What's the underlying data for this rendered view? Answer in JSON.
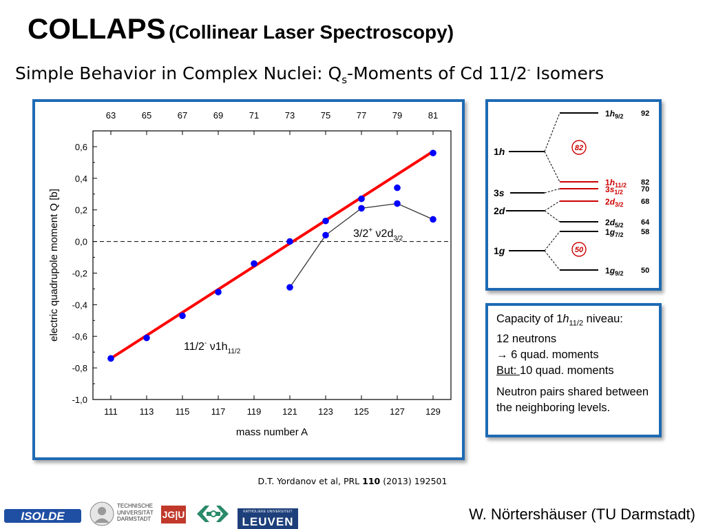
{
  "slide": {
    "title": "COLLAPS",
    "title_paren": "(Collinear Laser Spectroscopy)",
    "subtitle_pre": "Simple Behavior in Complex Nuclei: Q",
    "subtitle_sub": "s",
    "subtitle_mid": "-Moments of Cd 11/2",
    "subtitle_sup": "-",
    "subtitle_post": " Isomers",
    "citation_pre": "D.T. Yordanov et al, PRL ",
    "citation_vol": "110",
    "citation_post": " (2013) 192501",
    "author": "W. Nörtershäuser (TU Darmstadt)"
  },
  "chart_data": {
    "type": "scatter",
    "xlabel": "mass number A",
    "ylabel": "electric quadrupole moment Q [b]",
    "x_ticks": [
      111,
      113,
      115,
      117,
      119,
      121,
      123,
      125,
      127,
      129
    ],
    "top_ticks": [
      63,
      65,
      67,
      69,
      71,
      73,
      75,
      77,
      79,
      81
    ],
    "xlim": [
      110,
      130
    ],
    "ylim": [
      -1.0,
      0.7
    ],
    "y_ticks": [
      -1.0,
      -0.8,
      -0.6,
      -0.4,
      -0.2,
      0.0,
      0.2,
      0.4,
      0.6
    ],
    "y_tick_labels": [
      "-1,0",
      "-0,8",
      "-0,6",
      "-0,4",
      "-0,2",
      "0,0",
      "0,2",
      "0,4",
      "0,6"
    ],
    "zero_line": 0.0,
    "series": [
      {
        "name": "11/2⁻ ν1h11/2",
        "color": "#0000ff",
        "x": [
          111,
          113,
          115,
          117,
          119,
          121,
          123,
          125,
          127,
          129
        ],
        "y": [
          -0.74,
          -0.61,
          -0.47,
          -0.32,
          -0.14,
          0.0,
          0.13,
          0.27,
          0.34,
          0.56
        ]
      },
      {
        "name": "3/2⁺ ν2d3/2",
        "color": "#0000ff",
        "x": [
          121,
          123,
          125,
          127,
          129
        ],
        "y": [
          -0.29,
          0.04,
          0.21,
          0.24,
          0.14
        ]
      }
    ],
    "fit_line": {
      "color": "#ff0000",
      "x": [
        111,
        129
      ],
      "y": [
        -0.74,
        0.57
      ]
    },
    "annotations": {
      "h11": "11/2",
      "h11_sup": "-",
      "h11_nu": " ν1h",
      "h11_sub": "11/2",
      "d32": "3/2",
      "d32_sup": "+",
      "d32_nu": " ν2d",
      "d32_sub": "3/2"
    }
  },
  "levels": {
    "left_labels": [
      {
        "n": "1",
        "l": "h"
      },
      {
        "n": "3",
        "l": "s"
      },
      {
        "n": "2",
        "l": "d"
      },
      {
        "n": "1",
        "l": "g"
      }
    ],
    "right_labels": [
      {
        "n": "1",
        "l": "h",
        "j": "9/2",
        "num": "92",
        "color": "#000000"
      },
      {
        "n": "1",
        "l": "h",
        "j": "11/2",
        "num": "82",
        "color": "#cc0000"
      },
      {
        "n": "3",
        "l": "s",
        "j": "1/2",
        "num": "70",
        "color": "#cc0000"
      },
      {
        "n": "2",
        "l": "d",
        "j": "3/2",
        "num": "68",
        "color": "#cc0000"
      },
      {
        "n": "2",
        "l": "d",
        "j": "5/2",
        "num": "64",
        "color": "#000000"
      },
      {
        "n": "1",
        "l": "g",
        "j": "7/2",
        "num": "58",
        "color": "#000000"
      },
      {
        "n": "1",
        "l": "g",
        "j": "9/2",
        "num": "50",
        "color": "#000000"
      }
    ],
    "magic": [
      "82",
      "50"
    ],
    "magic_color": "#cc0000"
  },
  "info": {
    "line1_pre": "Capacity of 1",
    "line1_h": "h",
    "line1_sub": "11/2",
    "line1_post": " niveau:",
    "line2": "12 neutrons",
    "line3": "→ 6 quad. moments",
    "line4_u": "But: ",
    "line4_post": "10 quad. moments",
    "para2": "Neutron pairs shared between the neighboring levels."
  },
  "logos": {
    "isolde": "ISOLDE",
    "tud": [
      "TECHNISCHE",
      "UNIVERSITÄT",
      "DARMSTADT"
    ],
    "jgu": "JG|U",
    "leuven_small": "KATHOLIEKE UNIVERSITEIT",
    "leuven": "LEUVEN"
  }
}
